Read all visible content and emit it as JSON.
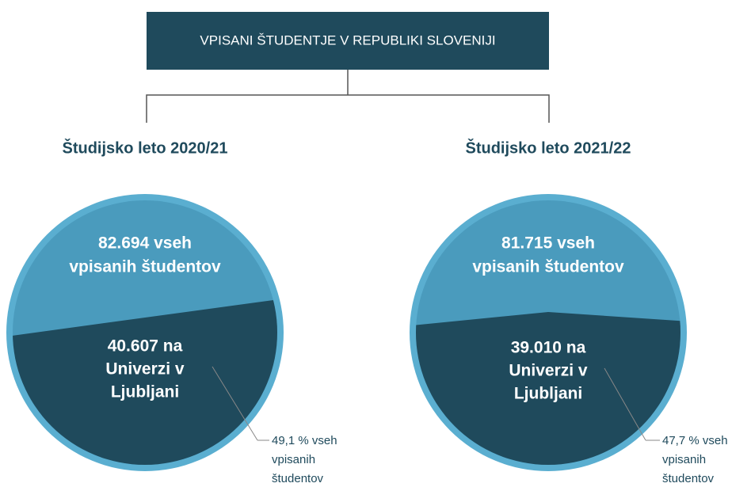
{
  "header": {
    "title": "VPISANI ŠTUDENTJE V REPUBLIKI SLOVENIJI"
  },
  "panels": [
    {
      "title": "Študijsko leto 2020/21",
      "total": [
        "82.694 vseh",
        "vpisanih študentov"
      ],
      "part": [
        "40.607 na",
        "Univerzi v",
        "Ljubljani"
      ],
      "share": [
        "49,1 % vseh",
        "vpisanih",
        "študentov"
      ]
    },
    {
      "title": "Študijsko leto 2021/22",
      "total": [
        "81.715 vseh",
        "vpisanih študentov"
      ],
      "part": [
        "39.010 na",
        "Univerzi v",
        "Ljubljani"
      ],
      "share": [
        "47,7 % vseh",
        "vpisanih",
        "študentov"
      ]
    }
  ]
}
